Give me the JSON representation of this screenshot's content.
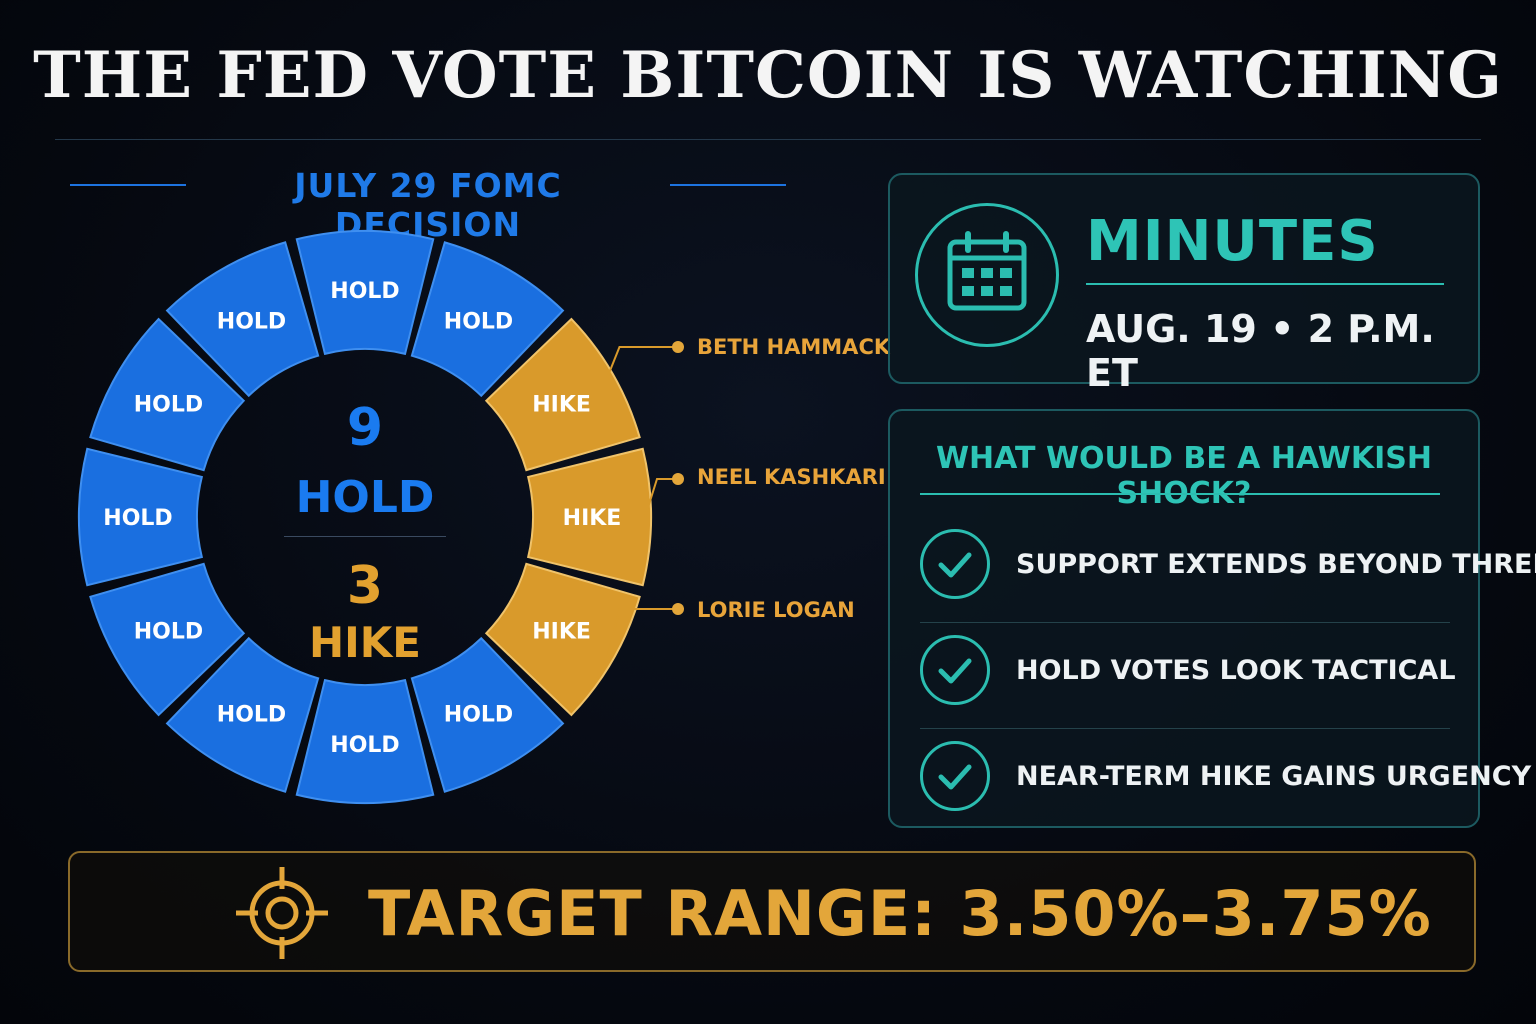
{
  "title": "THE FED VOTE BITCOIN IS WATCHING",
  "decision": {
    "heading": "JULY 29 FOMC DECISION",
    "hold_count": "9",
    "hold_label": "HOLD",
    "hike_count": "3",
    "hike_label": "HIKE",
    "votes": [
      "HOLD",
      "HOLD",
      "HIKE",
      "HIKE",
      "HIKE",
      "HOLD",
      "HOLD",
      "HOLD",
      "HOLD",
      "HOLD",
      "HOLD",
      "HOLD"
    ],
    "hike_members": [
      "BETH HAMMACK",
      "NEEL KASHKARI",
      "LORIE LOGAN"
    ],
    "colors": {
      "hold": "#1a6fe0",
      "hike": "#d99a2b"
    }
  },
  "minutes": {
    "title": "MINUTES",
    "date": "AUG. 19 • 2 P.M. ET",
    "icon": "calendar-icon"
  },
  "shock": {
    "title": "WHAT WOULD BE A HAWKISH SHOCK?",
    "items": [
      "SUPPORT EXTENDS BEYOND THREE",
      "HOLD VOTES LOOK TACTICAL",
      "NEAR-TERM HIKE GAINS URGENCY"
    ],
    "icon": "check-circle-icon"
  },
  "target": {
    "text": "TARGET RANGE: 3.50%–3.75%",
    "icon": "crosshair-icon"
  }
}
